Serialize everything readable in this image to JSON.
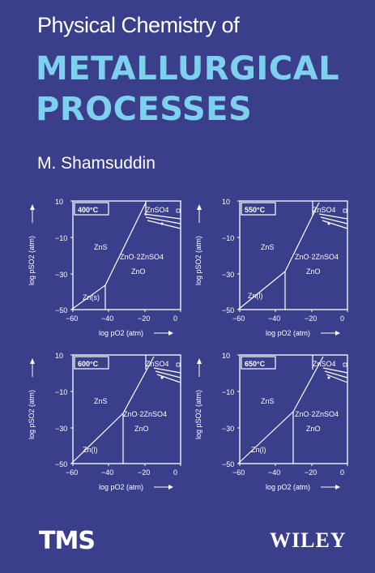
{
  "cover": {
    "title_line1": "Physical Chemistry of",
    "title_line2": "METALLURGICAL",
    "title_line3": "PROCESSES",
    "author": "M. Shamsuddin",
    "publisher_logo": "TMS",
    "publisher": "WILEY",
    "colors": {
      "background": "#3b3e8a",
      "title_accent": "#7ed0ef",
      "text": "#ffffff"
    }
  },
  "diagrams": [
    {
      "temperature": "400°C",
      "labels": {
        "zns": "ZnS",
        "znso4": "ZnSO4",
        "zno_2znso4": "ZnO·2ZnSO4",
        "zno": "ZnO",
        "zn": "Zn(s)"
      },
      "x_axis_label": "log pO2 (atm)",
      "y_axis_label": "log pSO2 (atm)",
      "x_ticks": [
        "−60",
        "−40",
        "−20",
        "0"
      ],
      "y_ticks": [
        "10",
        "−10",
        "−30",
        "−50"
      ]
    },
    {
      "temperature": "550°C",
      "labels": {
        "zns": "ZnS",
        "znso4": "ZnSO4",
        "zno_2znso4": "ZnO·2ZnSO4",
        "zno": "ZnO",
        "zn": "Zn(l)"
      },
      "x_axis_label": "log pO2 (atm)",
      "y_axis_label": "log pSO2 (atm)",
      "x_ticks": [
        "−60",
        "−40",
        "−20",
        "0"
      ],
      "y_ticks": [
        "10",
        "−10",
        "−30",
        "−50"
      ]
    },
    {
      "temperature": "600°C",
      "labels": {
        "zns": "ZnS",
        "znso4": "ZnSO4",
        "zno_2znso4": "ZnO·2ZnSO4",
        "zno": "ZnO",
        "zn": "Zn(l)"
      },
      "x_axis_label": "log pO2 (atm)",
      "y_axis_label": "log pSO2 (atm)",
      "x_ticks": [
        "−60",
        "−40",
        "−20",
        "0"
      ],
      "y_ticks": [
        "10",
        "−10",
        "−30",
        "−50"
      ]
    },
    {
      "temperature": "650°C",
      "labels": {
        "zns": "ZnS",
        "znso4": "ZnSO4",
        "zno_2znso4": "ZnO·2ZnSO4",
        "zno": "ZnO",
        "zn": "Zn(l)"
      },
      "x_axis_label": "log pO2 (atm)",
      "y_axis_label": "log pSO2 (atm)",
      "x_ticks": [
        "−60",
        "−40",
        "−20",
        "0"
      ],
      "y_ticks": [
        "10",
        "−10",
        "−30",
        "−50"
      ]
    }
  ]
}
